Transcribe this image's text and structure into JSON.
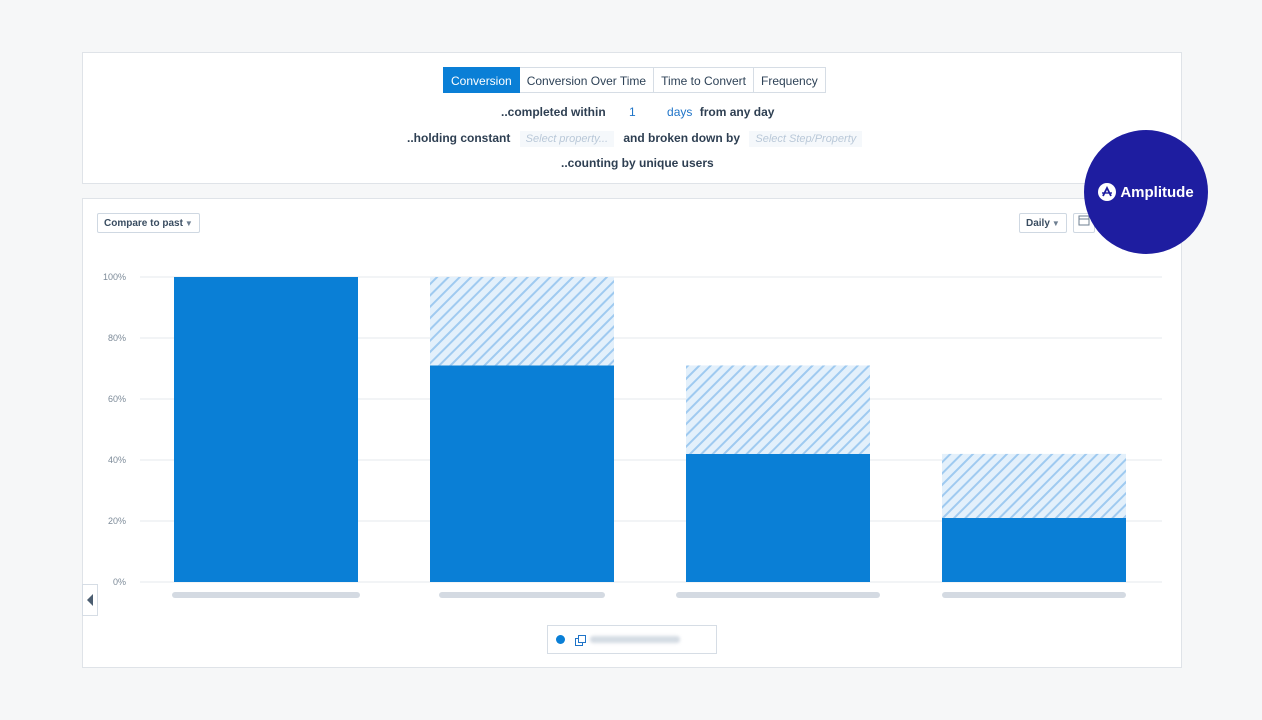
{
  "tabs": [
    {
      "label": "Conversion",
      "active": true
    },
    {
      "label": "Conversion Over Time",
      "active": false
    },
    {
      "label": "Time to Convert",
      "active": false
    },
    {
      "label": "Frequency",
      "active": false
    }
  ],
  "settings": {
    "completed_within_label": "..completed within",
    "completed_within_value": "1",
    "completed_within_unit": "days",
    "from_label": "from any day",
    "holding_constant_label": "..holding constant",
    "holding_constant_placeholder": "Select property...",
    "broken_down_label": "and broken down by",
    "broken_down_placeholder": "Select Step/Property",
    "counting_label": "..counting by unique users"
  },
  "toolbar": {
    "compare_label": "Compare to past",
    "interval_label": "Daily"
  },
  "logo": {
    "text": "Amplitude",
    "bg_color": "#1e1da0"
  },
  "colors": {
    "bar": "#0a7fd6",
    "hatch": "#9fcaf0",
    "grid": "#e6eaee"
  },
  "chart_data": {
    "type": "bar",
    "stacked": true,
    "categories": [
      "",
      "",
      "",
      ""
    ],
    "series": [
      {
        "values": [
          100,
          71,
          42,
          21
        ]
      },
      {
        "values": [
          0,
          29,
          29,
          21
        ],
        "pattern": "hatched"
      }
    ],
    "ylim": [
      0,
      100
    ],
    "yticks": [
      "0%",
      "20%",
      "40%",
      "60%",
      "80%",
      "100%"
    ],
    "grid": true
  }
}
